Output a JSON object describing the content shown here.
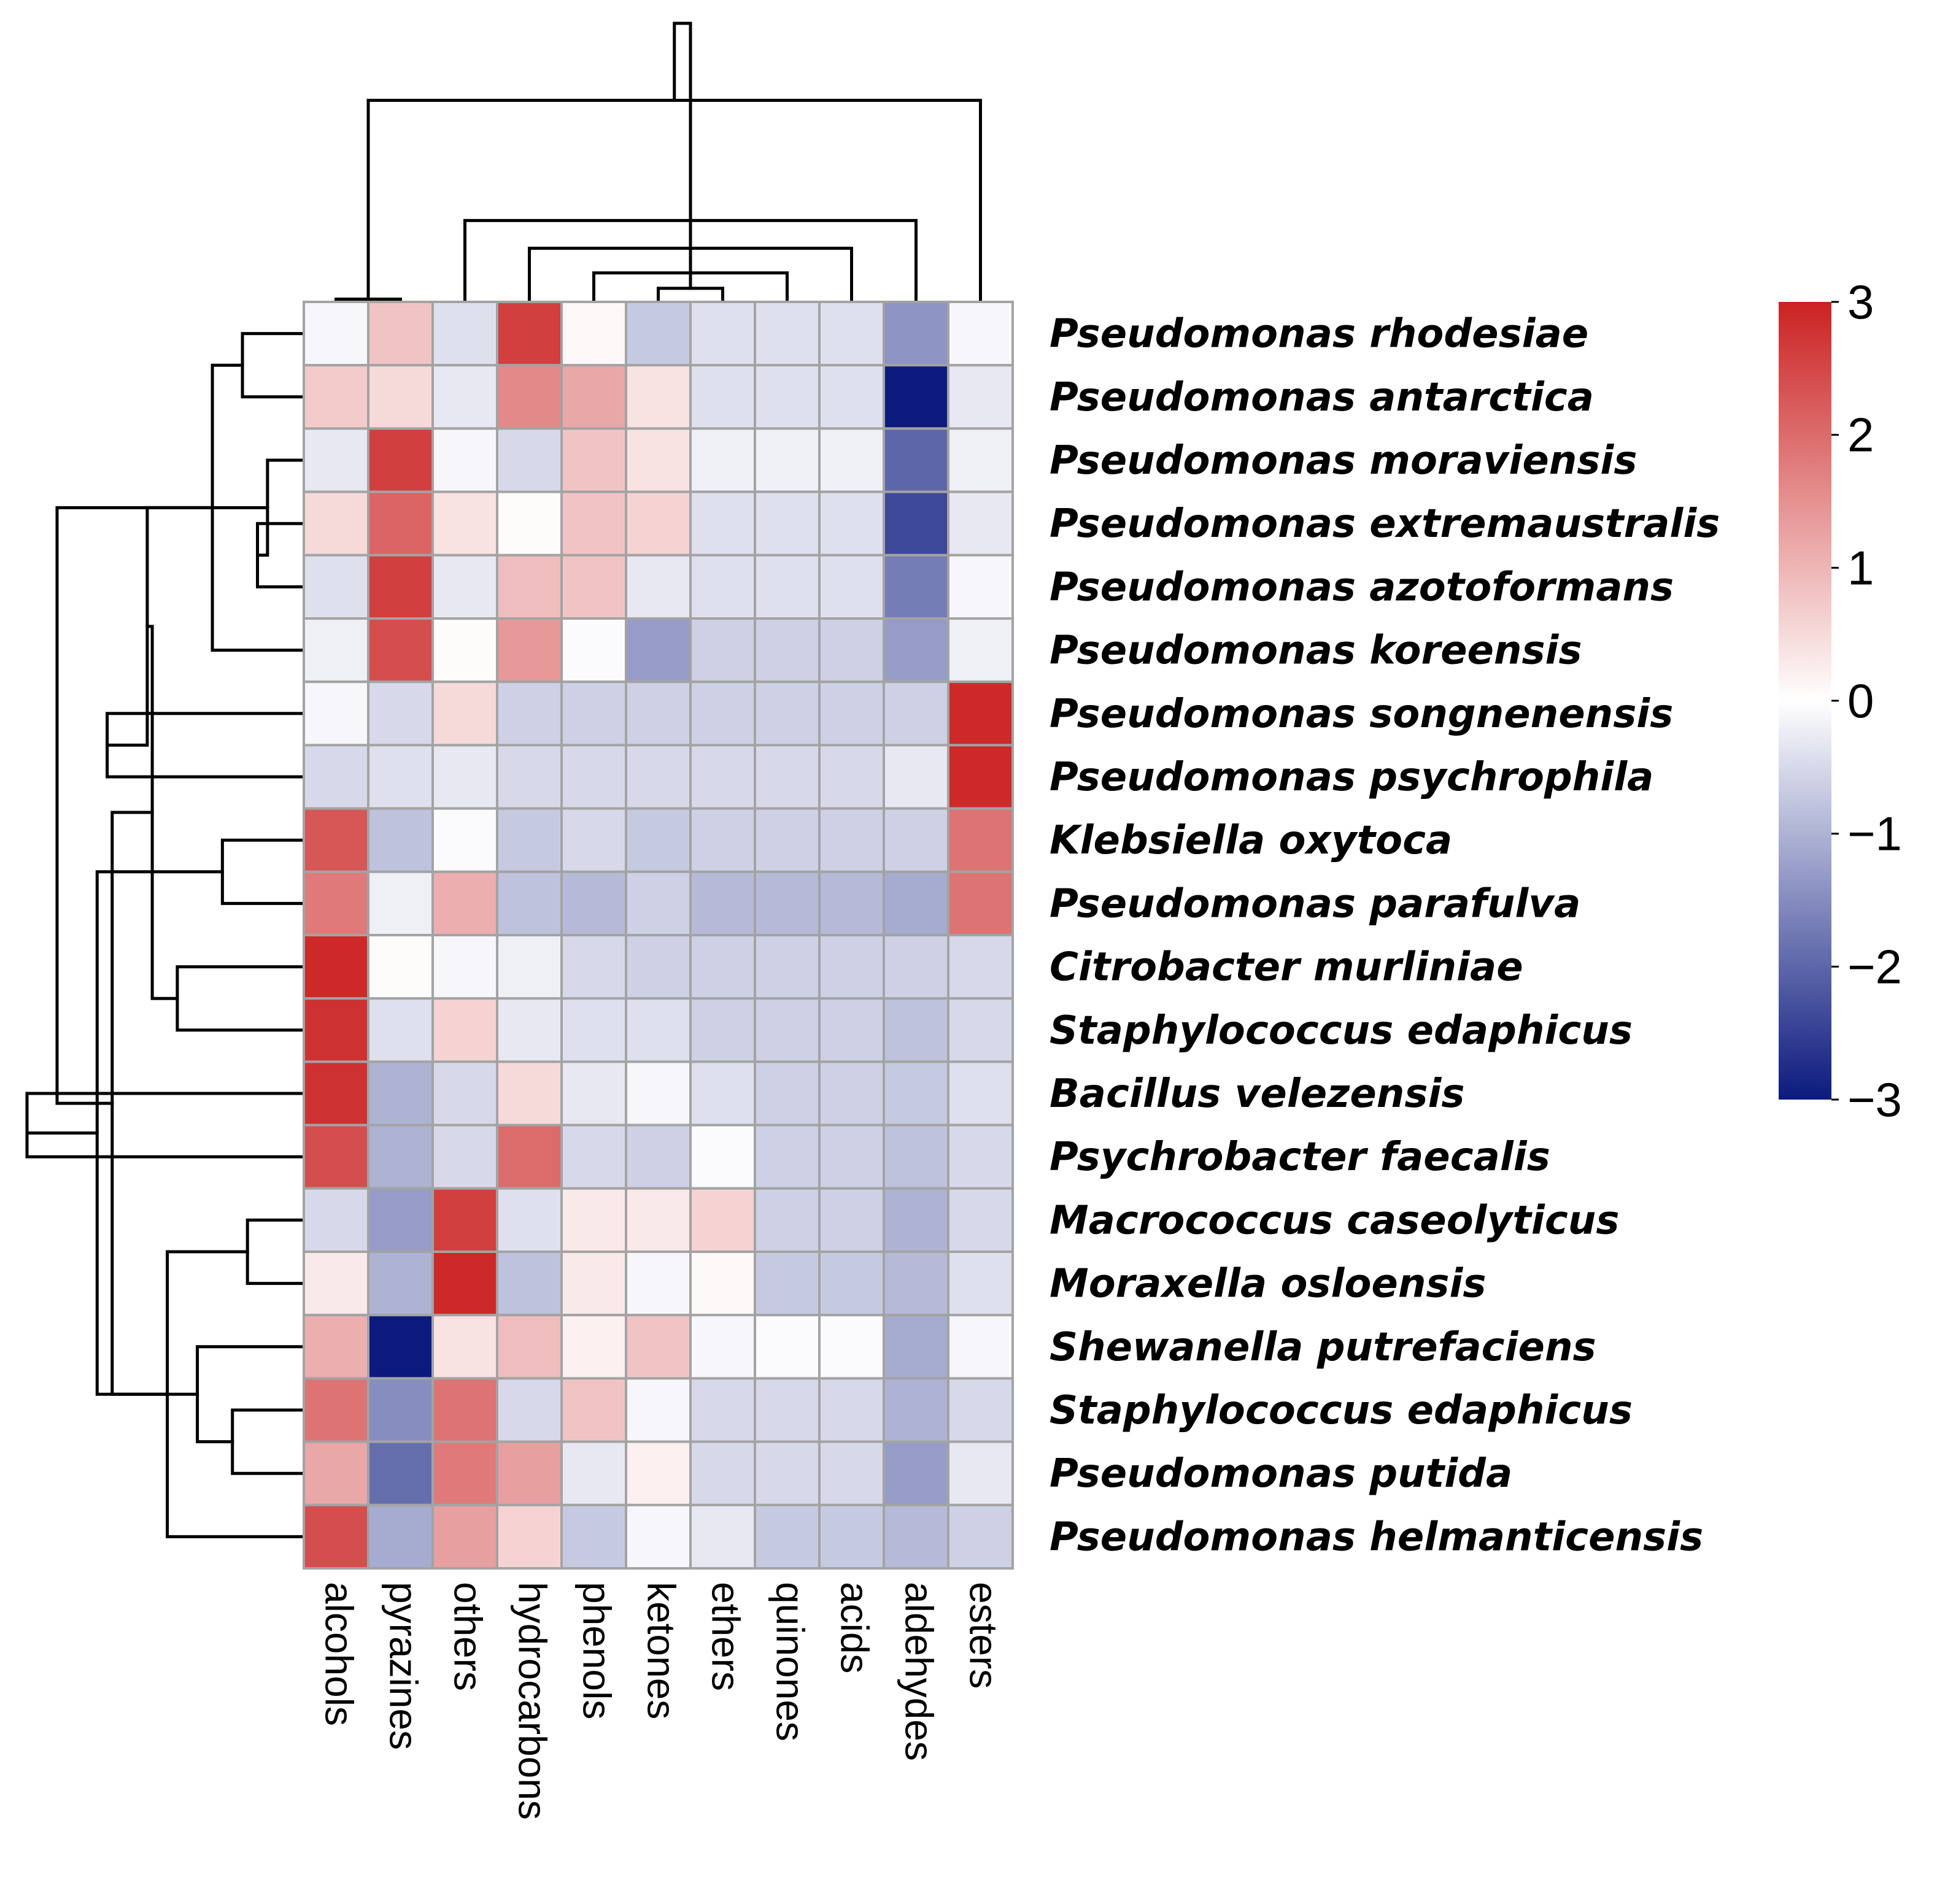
{
  "chart_data": {
    "type": "heatmap",
    "title": "",
    "color_scale": {
      "min": -3,
      "max": 3,
      "low": "#0c1a7e",
      "mid": "#ffffff",
      "high": "#cb2222"
    },
    "legend": {
      "ticks": [
        "3",
        "2",
        "1",
        "0",
        "−1",
        "−2",
        "−3"
      ],
      "tick_values": [
        3,
        2,
        1,
        0,
        -1,
        -2,
        -3
      ],
      "placement": "right"
    },
    "columns": [
      "alcohols",
      "pyrazines",
      "others",
      "hydrocarbons",
      "phenols",
      "ketones",
      "ethers",
      "quinones",
      "acids",
      "aldehydes",
      "esters"
    ],
    "rows": [
      "Pseudomonas rhodesiae",
      "Pseudomonas antarctica",
      "Pseudomonas moraviensis",
      "Pseudomonas extremaustralis",
      "Pseudomonas azotoformans",
      "Pseudomonas koreensis",
      "Pseudomonas songnenensis",
      "Pseudomonas psychrophila",
      "Klebsiella oxytoca",
      "Pseudomonas parafulva",
      "Citrobacter murliniae",
      "Staphylococcus edaphicus",
      "Bacillus velezensis",
      "Psychrobacter faecalis",
      "Macrococcus caseolyticus",
      "Moraxella osloensis",
      "Shewanella putrefaciens",
      "Staphylococcus edaphicus",
      "Pseudomonas putida",
      "Pseudomonas helmanticensis"
    ],
    "values": [
      [
        -0.1,
        0.8,
        -0.4,
        2.6,
        0.1,
        -0.7,
        -0.4,
        -0.4,
        -0.4,
        -1.4,
        -0.1
      ],
      [
        0.7,
        0.5,
        -0.3,
        1.6,
        1.2,
        0.4,
        -0.4,
        -0.4,
        -0.4,
        -3.0,
        -0.3
      ],
      [
        -0.3,
        2.6,
        -0.1,
        -0.5,
        0.8,
        0.4,
        -0.2,
        -0.2,
        -0.2,
        -2.0,
        -0.2
      ],
      [
        0.5,
        2.1,
        0.4,
        0.05,
        0.8,
        0.6,
        -0.4,
        -0.4,
        -0.4,
        -2.4,
        -0.3
      ],
      [
        -0.4,
        2.6,
        -0.3,
        0.9,
        0.8,
        -0.3,
        -0.4,
        -0.4,
        -0.4,
        -1.7,
        -0.1
      ],
      [
        -0.2,
        2.4,
        0.05,
        1.4,
        -0.05,
        -1.3,
        -0.6,
        -0.6,
        -0.6,
        -1.3,
        -0.2
      ],
      [
        -0.1,
        -0.5,
        0.5,
        -0.6,
        -0.6,
        -0.6,
        -0.6,
        -0.6,
        -0.6,
        -0.6,
        2.9
      ],
      [
        -0.5,
        -0.4,
        -0.3,
        -0.5,
        -0.5,
        -0.5,
        -0.5,
        -0.5,
        -0.5,
        -0.3,
        2.9
      ],
      [
        2.3,
        -0.8,
        -0.05,
        -0.7,
        -0.5,
        -0.7,
        -0.6,
        -0.6,
        -0.6,
        -0.6,
        1.9
      ],
      [
        1.8,
        -0.2,
        1.1,
        -0.8,
        -0.9,
        -0.6,
        -0.9,
        -0.9,
        -0.9,
        -1.1,
        1.9
      ],
      [
        2.9,
        0.05,
        -0.1,
        -0.2,
        -0.5,
        -0.6,
        -0.6,
        -0.6,
        -0.6,
        -0.6,
        -0.5
      ],
      [
        2.8,
        -0.4,
        0.6,
        -0.3,
        -0.4,
        -0.4,
        -0.6,
        -0.6,
        -0.6,
        -0.8,
        -0.5
      ],
      [
        2.8,
        -1.0,
        -0.5,
        0.5,
        -0.3,
        -0.1,
        -0.4,
        -0.6,
        -0.6,
        -0.7,
        -0.4
      ],
      [
        2.4,
        -1.0,
        -0.5,
        2.0,
        -0.5,
        -0.6,
        -0.05,
        -0.6,
        -0.6,
        -0.8,
        -0.5
      ],
      [
        -0.5,
        -1.3,
        2.6,
        -0.4,
        0.3,
        0.3,
        0.6,
        -0.6,
        -0.6,
        -1.0,
        -0.5
      ],
      [
        0.3,
        -1.0,
        2.9,
        -0.8,
        0.3,
        -0.1,
        0.1,
        -0.7,
        -0.7,
        -0.9,
        -0.4
      ],
      [
        1.1,
        -3.0,
        0.4,
        0.9,
        0.2,
        0.8,
        -0.1,
        -0.05,
        -0.05,
        -1.1,
        -0.1
      ],
      [
        1.9,
        -1.5,
        1.9,
        -0.5,
        0.8,
        -0.1,
        -0.5,
        -0.5,
        -0.5,
        -1.0,
        -0.5
      ],
      [
        1.2,
        -1.9,
        1.8,
        1.3,
        -0.3,
        0.2,
        -0.5,
        -0.5,
        -0.5,
        -1.3,
        -0.3
      ],
      [
        2.4,
        -1.1,
        1.3,
        0.6,
        -0.7,
        -0.1,
        -0.3,
        -0.7,
        -0.7,
        -0.9,
        -0.6
      ]
    ],
    "column_dendrogram": [
      [
        0,
        1
      ],
      [
        5,
        6
      ],
      [
        4,
        7
      ],
      [
        3,
        8
      ],
      [
        2,
        9
      ],
      [
        10,
        11
      ],
      [
        12,
        13
      ],
      [
        14,
        15
      ],
      [
        16,
        17
      ]
    ],
    "row_dendrogram": [
      [
        3,
        4
      ],
      [
        0,
        1
      ],
      [
        2,
        20
      ],
      [
        5,
        21
      ],
      [
        6,
        7
      ],
      [
        8,
        9
      ],
      [
        23,
        24
      ],
      [
        10,
        11
      ],
      [
        12,
        13
      ],
      [
        26,
        27
      ],
      [
        14,
        15
      ],
      [
        17,
        18
      ],
      [
        19,
        30
      ],
      [
        16,
        31
      ],
      [
        29,
        32
      ],
      [
        25,
        33
      ],
      [
        22,
        34
      ],
      [
        28,
        35
      ]
    ],
    "column_dendrogram_heights": [
      0.05,
      0.4,
      0.9,
      1.7,
      2.6,
      6.5,
      7.2,
      8.6,
      9.0
    ],
    "row_dendrogram_heights": [
      0.9,
      1.2,
      0.7,
      1.8,
      3.9,
      1.6,
      3.1,
      2.5,
      5.5,
      3.0,
      1.1,
      1.4,
      2.7,
      2.1,
      3.8,
      4.1,
      4.9,
      5.5
    ]
  }
}
